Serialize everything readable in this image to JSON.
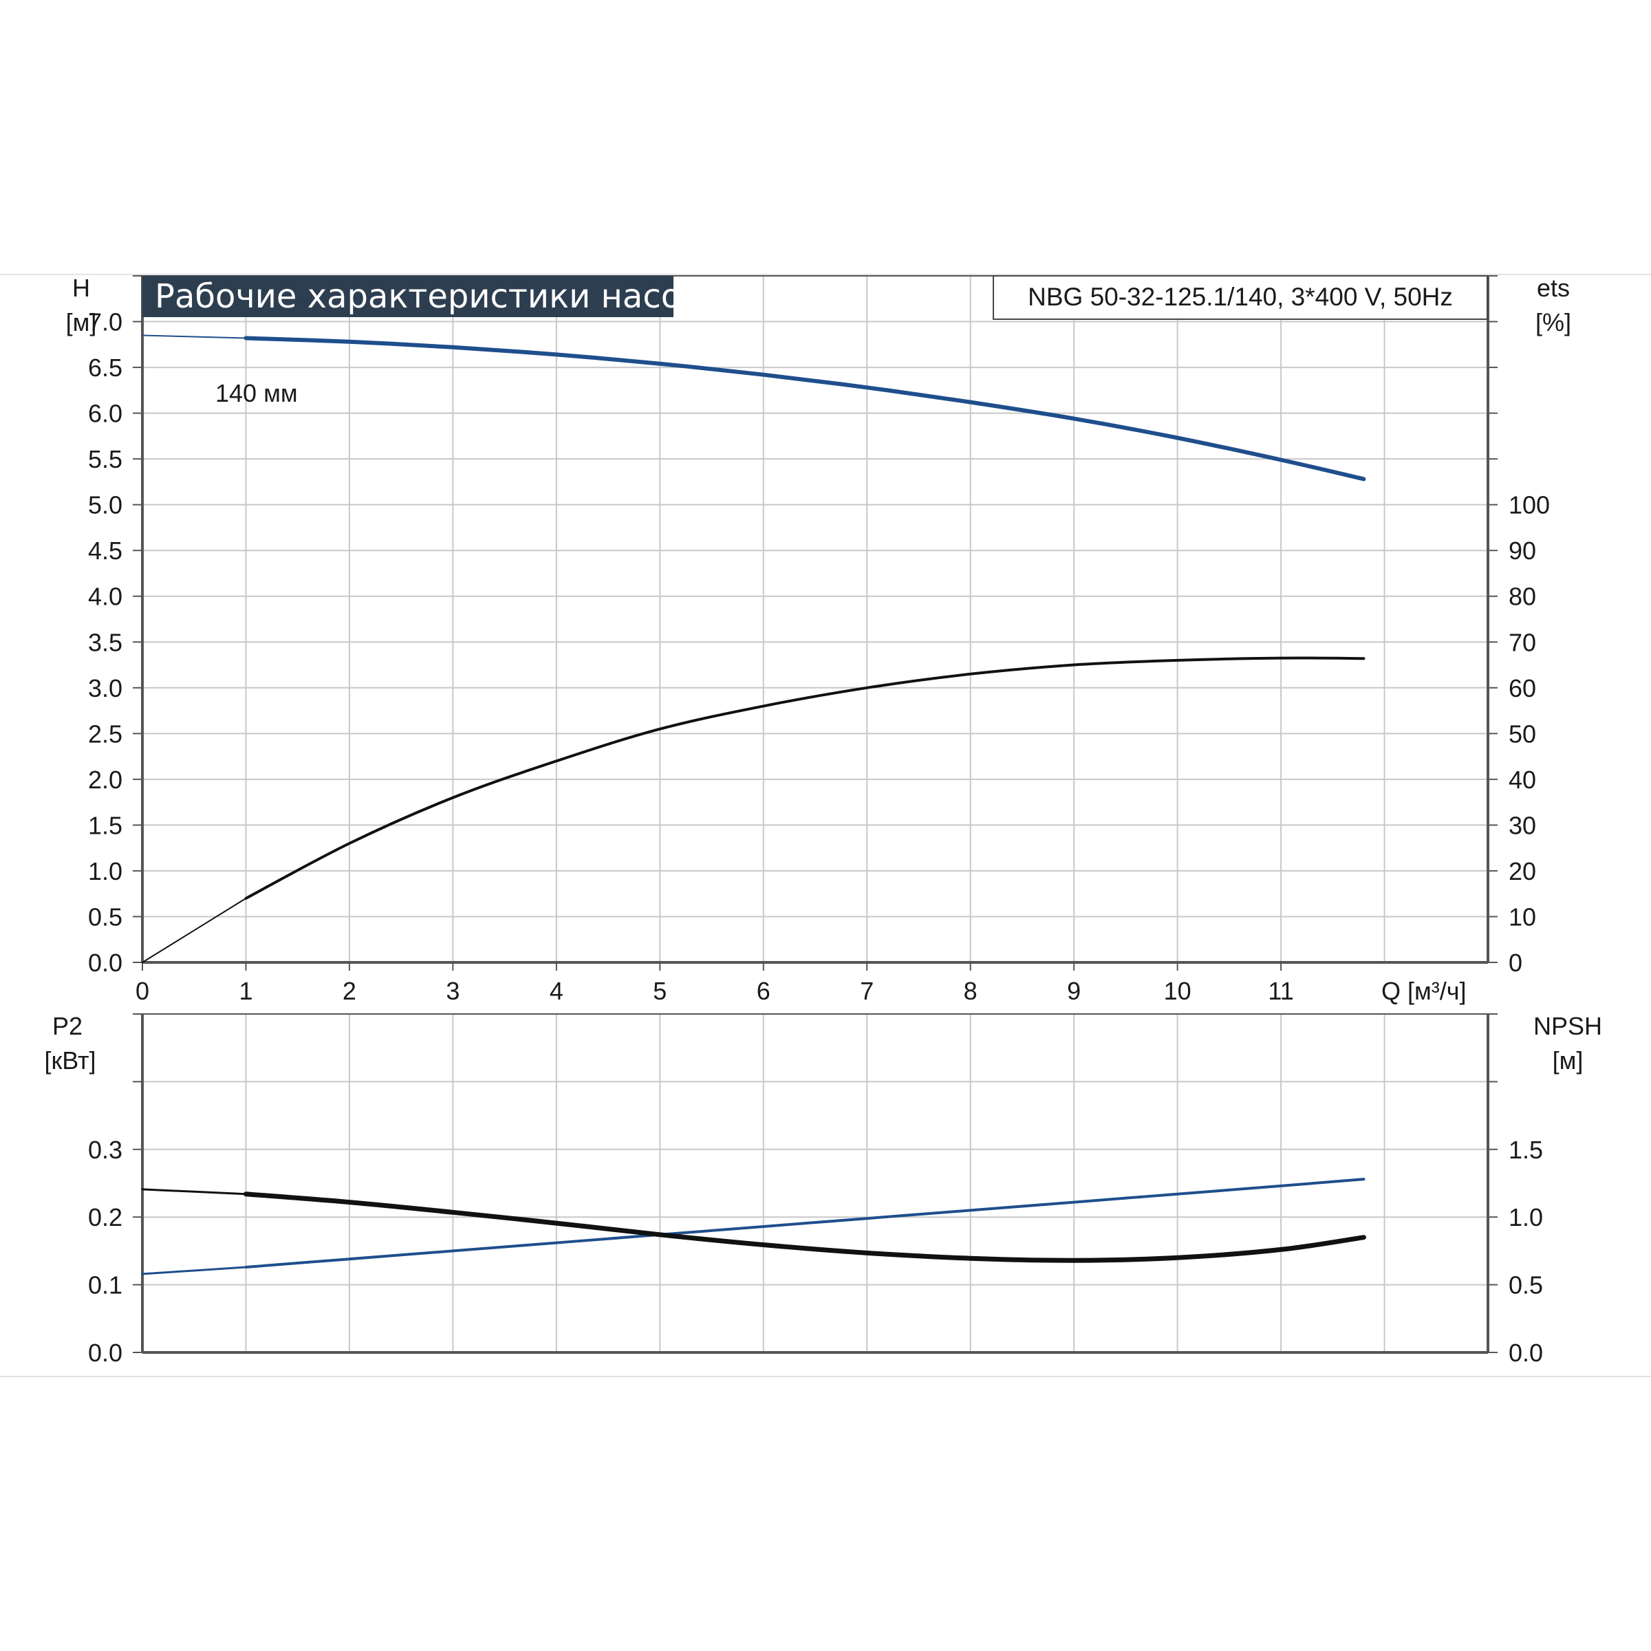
{
  "chart_data": [
    {
      "type": "line",
      "title": "Рабочие характеристики насоса",
      "model_label": "NBG 50-32-125.1/140, 3*400 V, 50Hz",
      "xlabel": "Q [м³/ч]",
      "x_ticks": [
        "0",
        "1",
        "2",
        "3",
        "4",
        "5",
        "6",
        "7",
        "8",
        "9",
        "10",
        "11"
      ],
      "xlim": [
        0,
        13
      ],
      "left_axis": {
        "label": "H",
        "unit": "[м]",
        "ylim": [
          0,
          7.5
        ],
        "ticks": [
          "0.0",
          "0.5",
          "1.0",
          "1.5",
          "2.0",
          "2.5",
          "3.0",
          "3.5",
          "4.0",
          "4.5",
          "5.0",
          "5.5",
          "6.0",
          "6.5",
          "7.0"
        ]
      },
      "right_axis": {
        "label": "ets",
        "unit": "[%]",
        "ylim": [
          0,
          150
        ],
        "ticks": [
          "0",
          "10",
          "20",
          "30",
          "40",
          "50",
          "60",
          "70",
          "80",
          "90",
          "100"
        ]
      },
      "grid": true,
      "series": [
        {
          "name": "140 мм",
          "axis": "left",
          "color": "#1f4e8c",
          "x": [
            0,
            1,
            2,
            3,
            4,
            5,
            6,
            7,
            8,
            9,
            10,
            11,
            11.8
          ],
          "y": [
            6.85,
            6.82,
            6.78,
            6.72,
            6.64,
            6.54,
            6.42,
            6.28,
            6.12,
            5.94,
            5.73,
            5.49,
            5.28
          ]
        },
        {
          "axis": "right",
          "color": "#111111",
          "x": [
            0,
            1,
            2,
            3,
            4,
            5,
            6,
            7,
            8,
            9,
            10,
            11,
            11.8
          ],
          "y": [
            0,
            14,
            26,
            36,
            44,
            51,
            56,
            60,
            63,
            65,
            66,
            66.5,
            66.4
          ]
        }
      ]
    },
    {
      "type": "line",
      "xlim": [
        0,
        13
      ],
      "left_axis": {
        "label": "P2",
        "unit": "[кВт]",
        "ylim": [
          0,
          0.5
        ],
        "ticks": [
          "0.0",
          "0.1",
          "0.2",
          "0.3"
        ]
      },
      "right_axis": {
        "label": "NPSH",
        "unit": "[м]",
        "ylim": [
          0,
          2.5
        ],
        "ticks": [
          "0.0",
          "0.5",
          "1.0",
          "1.5"
        ]
      },
      "grid": true,
      "series": [
        {
          "axis": "left",
          "color": "#111111",
          "x": [
            0,
            1,
            2,
            3,
            4,
            5,
            6,
            7,
            8,
            9,
            10,
            11,
            11.8
          ],
          "y": [
            0.241,
            0.234,
            0.222,
            0.207,
            0.191,
            0.174,
            0.159,
            0.147,
            0.139,
            0.136,
            0.14,
            0.152,
            0.17
          ]
        },
        {
          "axis": "right",
          "color": "#1f4e8c",
          "x": [
            0,
            1,
            2,
            3,
            4,
            5,
            6,
            7,
            8,
            9,
            10,
            11,
            11.8
          ],
          "y": [
            0.58,
            0.63,
            0.69,
            0.75,
            0.81,
            0.87,
            0.93,
            0.99,
            1.05,
            1.11,
            1.17,
            1.23,
            1.28
          ]
        }
      ]
    }
  ]
}
